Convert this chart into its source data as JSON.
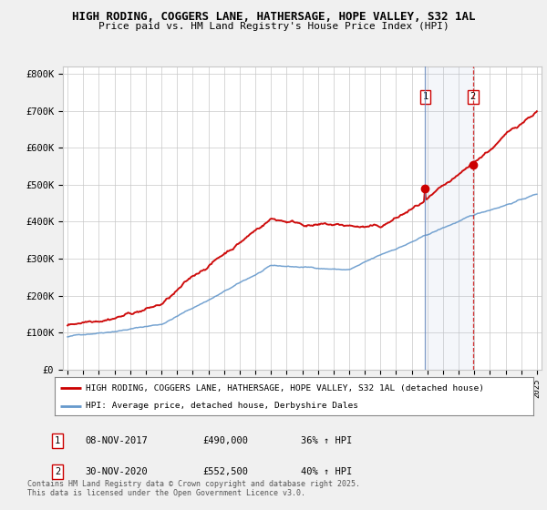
{
  "title": "HIGH RODING, COGGERS LANE, HATHERSAGE, HOPE VALLEY, S32 1AL",
  "subtitle": "Price paid vs. HM Land Registry's House Price Index (HPI)",
  "ylabel_ticks": [
    "£0",
    "£100K",
    "£200K",
    "£300K",
    "£400K",
    "£500K",
    "£600K",
    "£700K",
    "£800K"
  ],
  "ytick_vals": [
    0,
    100000,
    200000,
    300000,
    400000,
    500000,
    600000,
    700000,
    800000
  ],
  "ylim": [
    0,
    820000
  ],
  "xlim_start": 1994.7,
  "xlim_end": 2025.3,
  "red_color": "#cc0000",
  "blue_color": "#6699cc",
  "marker1_x": 2017.86,
  "marker2_x": 2020.92,
  "marker1_y": 490000,
  "marker2_y": 552500,
  "legend_line1": "HIGH RODING, COGGERS LANE, HATHERSAGE, HOPE VALLEY, S32 1AL (detached house)",
  "legend_line2": "HPI: Average price, detached house, Derbyshire Dales",
  "footer": "Contains HM Land Registry data © Crown copyright and database right 2025.\nThis data is licensed under the Open Government Licence v3.0.",
  "background_color": "#f0f0f0",
  "plot_bg_color": "#ffffff",
  "grid_color": "#c8c8c8"
}
